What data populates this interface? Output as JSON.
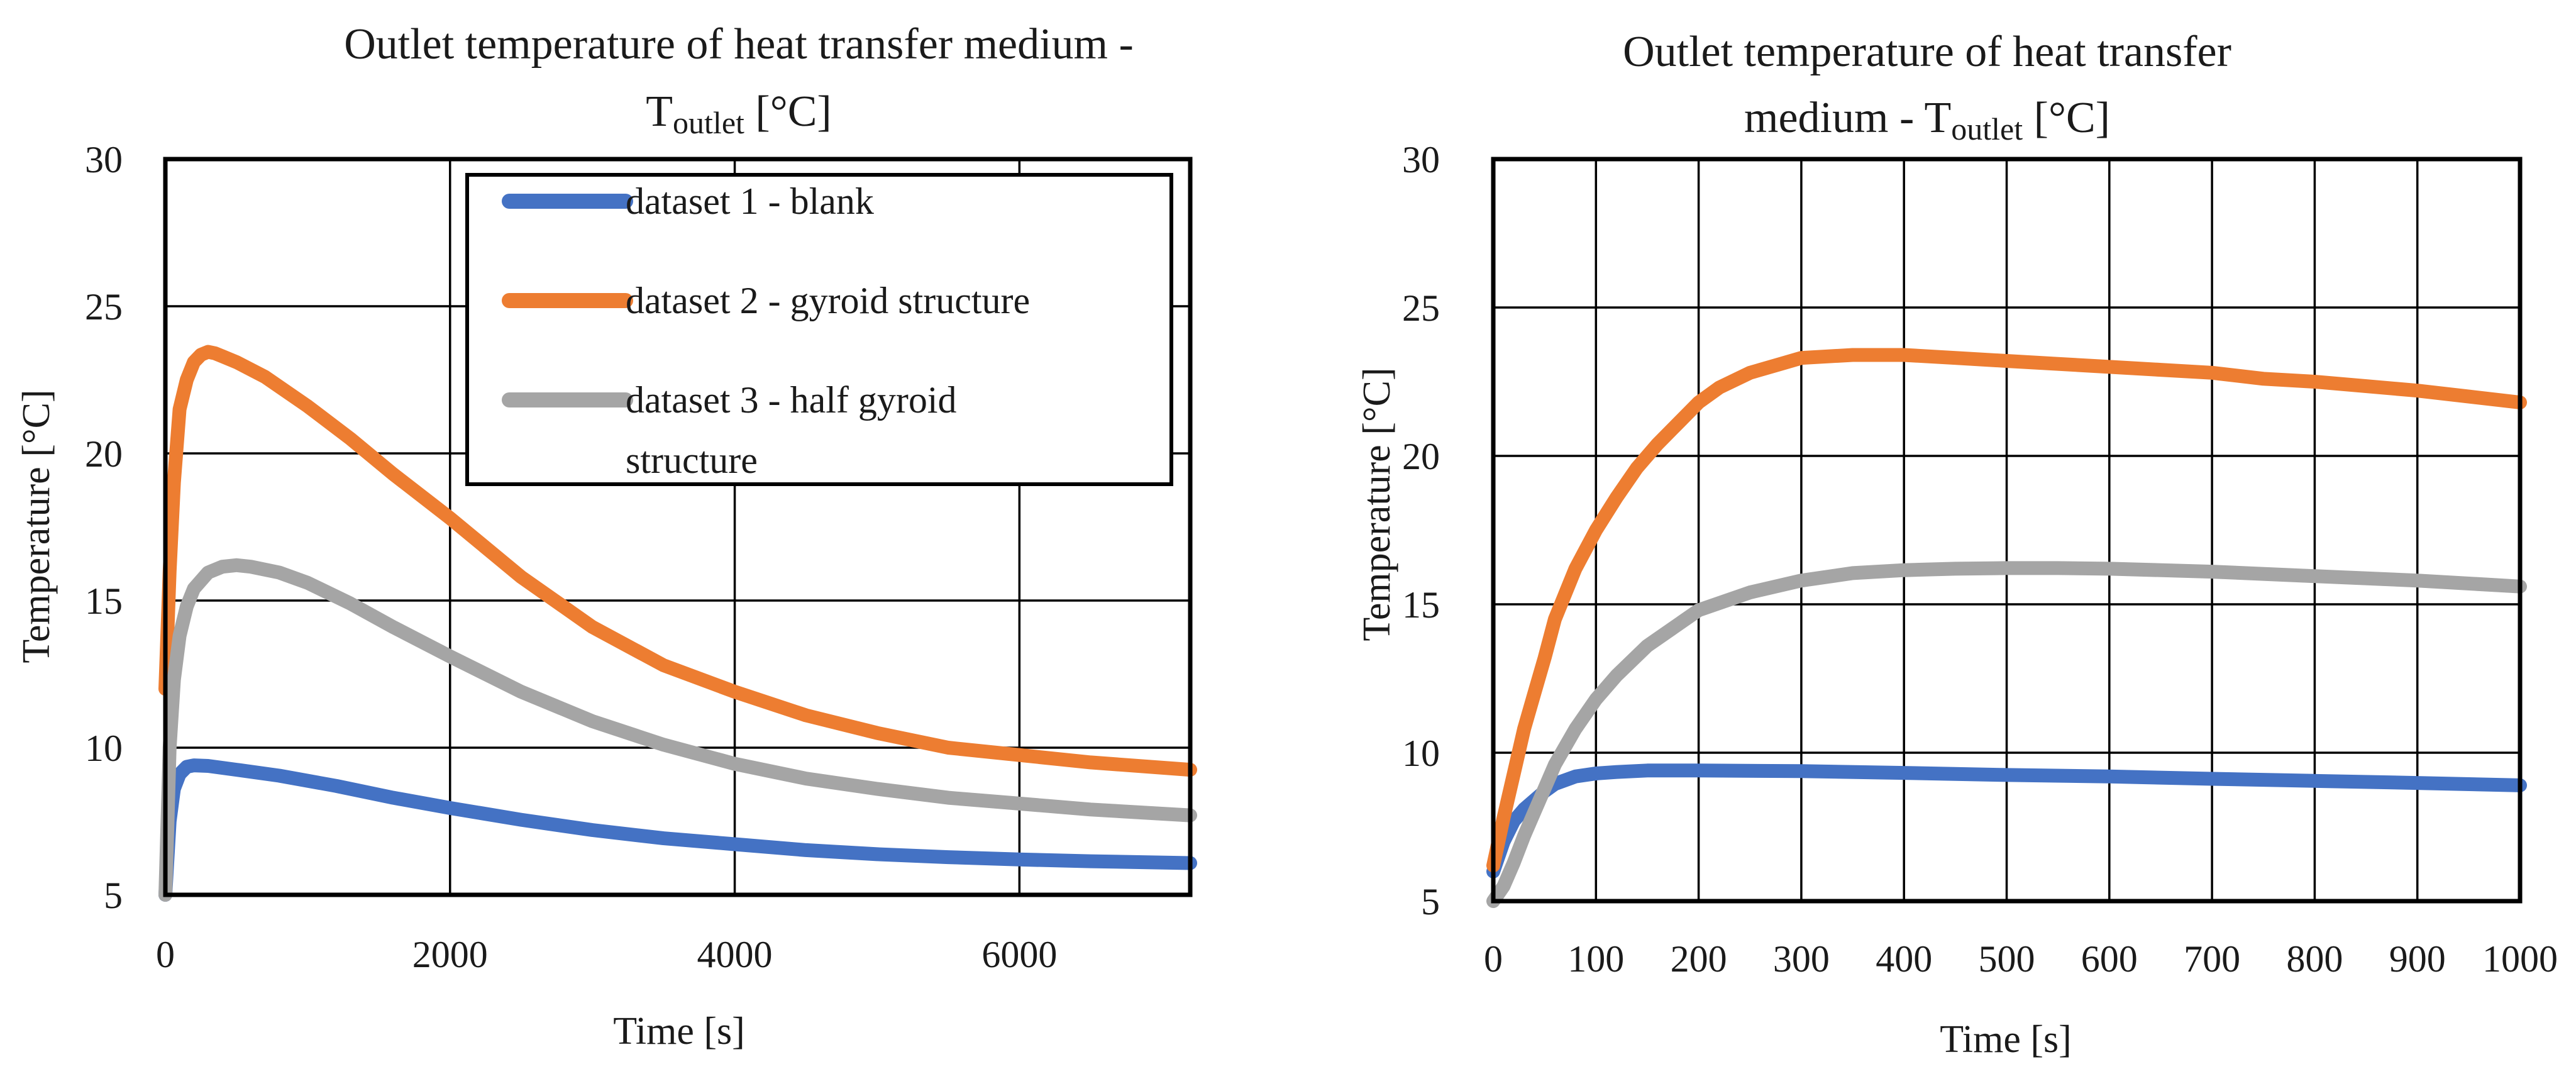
{
  "chart_data": [
    {
      "type": "line",
      "title_main": "Outlet temperature of heat transfer medium -",
      "title_symbol": "T",
      "title_subscript": "outlet",
      "title_unit": " [°C]",
      "xlabel": "Time [s]",
      "ylabel": "Temperature [°C]",
      "xlim": [
        0,
        7200
      ],
      "ylim": [
        5,
        30
      ],
      "xticks": [
        0,
        2000,
        4000,
        6000
      ],
      "yticks": [
        5,
        10,
        15,
        20,
        25,
        30
      ],
      "xtick_labels": [
        "0",
        "2000",
        "4000",
        "6000"
      ],
      "ytick_labels": [
        "5",
        "10",
        "15",
        "20",
        "25",
        "30"
      ],
      "grid": true,
      "legend": {
        "position": "top-right",
        "entries": [
          "dataset 1 - blank",
          "dataset 2 - gyroid structure",
          "dataset 3 - half gyroid",
          "structure"
        ]
      },
      "series": [
        {
          "name": "dataset 1 - blank",
          "color": "#4472c4",
          "x": [
            0,
            30,
            60,
            100,
            150,
            200,
            300,
            500,
            800,
            1200,
            1600,
            2000,
            2500,
            3000,
            3500,
            4000,
            4500,
            5000,
            5500,
            6000,
            6500,
            7200
          ],
          "y": [
            5,
            7.5,
            8.6,
            9.1,
            9.35,
            9.4,
            9.38,
            9.25,
            9.05,
            8.7,
            8.3,
            7.95,
            7.55,
            7.2,
            6.92,
            6.72,
            6.52,
            6.38,
            6.28,
            6.2,
            6.14,
            6.08
          ]
        },
        {
          "name": "dataset 2 - gyroid structure",
          "color": "#ed7d31",
          "x": [
            0,
            30,
            60,
            100,
            150,
            200,
            250,
            300,
            350,
            400,
            500,
            700,
            1000,
            1300,
            1600,
            2000,
            2500,
            3000,
            3500,
            4000,
            4500,
            5000,
            5500,
            6000,
            6500,
            7200
          ],
          "y": [
            12,
            16,
            19,
            21.5,
            22.5,
            23.1,
            23.35,
            23.45,
            23.4,
            23.3,
            23.1,
            22.6,
            21.6,
            20.5,
            19.3,
            17.8,
            15.8,
            14.1,
            12.8,
            11.9,
            11.1,
            10.5,
            10.0,
            9.75,
            9.5,
            9.25
          ]
        },
        {
          "name": "dataset 3 - half gyroid structure",
          "color": "#a5a5a5",
          "x": [
            0,
            30,
            60,
            100,
            150,
            200,
            300,
            400,
            500,
            600,
            800,
            1000,
            1300,
            1600,
            2000,
            2500,
            3000,
            3500,
            4000,
            4500,
            5000,
            5500,
            6000,
            6500,
            7200
          ],
          "y": [
            5,
            10,
            12.3,
            13.8,
            14.8,
            15.4,
            15.95,
            16.15,
            16.2,
            16.15,
            15.95,
            15.6,
            14.9,
            14.1,
            13.1,
            11.9,
            10.9,
            10.1,
            9.45,
            8.95,
            8.6,
            8.3,
            8.1,
            7.9,
            7.7
          ]
        }
      ]
    },
    {
      "type": "line",
      "title_main": "Outlet temperature of heat transfer",
      "title_line2_prefix": "medium - ",
      "title_symbol": "T",
      "title_subscript": "outlet",
      "title_unit": " [°C]",
      "xlabel": "Time [s]",
      "ylabel": "Temperature [°C]",
      "xlim": [
        0,
        1000
      ],
      "ylim": [
        5,
        30
      ],
      "xticks": [
        0,
        100,
        200,
        300,
        400,
        500,
        600,
        700,
        800,
        900,
        1000
      ],
      "yticks": [
        5,
        10,
        15,
        20,
        25,
        30
      ],
      "xtick_labels": [
        "0",
        "100",
        "200",
        "300",
        "400",
        "500",
        "600",
        "700",
        "800",
        "900",
        "1000"
      ],
      "ytick_labels": [
        "5",
        "10",
        "15",
        "20",
        "25",
        "30"
      ],
      "grid": true,
      "legend": null,
      "series": [
        {
          "name": "dataset 1 - blank",
          "color": "#4472c4",
          "x": [
            0,
            10,
            20,
            30,
            40,
            50,
            60,
            80,
            100,
            120,
            150,
            200,
            300,
            400,
            500,
            600,
            700,
            800,
            900,
            1000
          ],
          "y": [
            6.0,
            7.0,
            7.7,
            8.1,
            8.4,
            8.7,
            8.95,
            9.2,
            9.3,
            9.35,
            9.4,
            9.4,
            9.38,
            9.32,
            9.25,
            9.2,
            9.12,
            9.05,
            8.98,
            8.9
          ]
        },
        {
          "name": "dataset 2 - gyroid structure",
          "color": "#ed7d31",
          "x": [
            0,
            10,
            20,
            30,
            40,
            50,
            60,
            80,
            100,
            120,
            140,
            160,
            180,
            200,
            220,
            250,
            280,
            300,
            350,
            400,
            450,
            500,
            550,
            600,
            650,
            700,
            750,
            800,
            850,
            900,
            950,
            1000
          ],
          "y": [
            6.2,
            7.8,
            9.3,
            10.8,
            12.0,
            13.2,
            14.5,
            16.2,
            17.5,
            18.6,
            19.6,
            20.4,
            21.1,
            21.8,
            22.3,
            22.8,
            23.1,
            23.3,
            23.4,
            23.4,
            23.3,
            23.2,
            23.1,
            23.0,
            22.9,
            22.8,
            22.6,
            22.5,
            22.35,
            22.2,
            22.0,
            21.8
          ]
        },
        {
          "name": "dataset 3 - half gyroid structure",
          "color": "#a5a5a5",
          "x": [
            0,
            10,
            20,
            30,
            40,
            50,
            60,
            80,
            100,
            120,
            150,
            200,
            250,
            300,
            350,
            400,
            450,
            500,
            550,
            600,
            700,
            800,
            900,
            1000
          ],
          "y": [
            5.0,
            5.5,
            6.3,
            7.2,
            8.0,
            8.8,
            9.6,
            10.8,
            11.8,
            12.6,
            13.6,
            14.8,
            15.4,
            15.8,
            16.05,
            16.15,
            16.2,
            16.22,
            16.22,
            16.2,
            16.1,
            15.95,
            15.8,
            15.6
          ]
        }
      ]
    }
  ]
}
